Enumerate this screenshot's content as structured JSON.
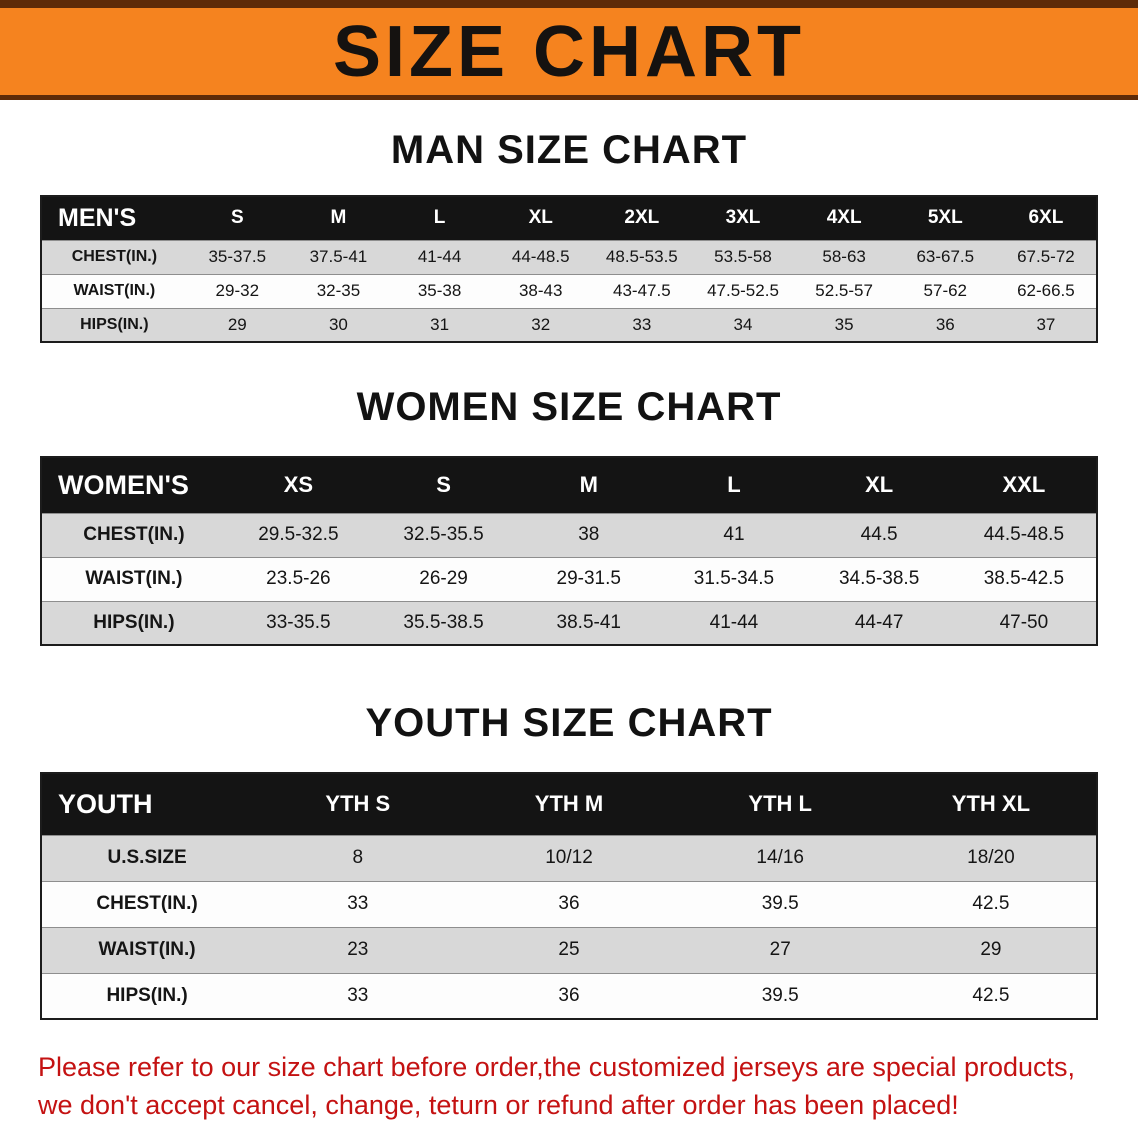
{
  "banner": {
    "title": "SIZE CHART"
  },
  "sections": [
    {
      "heading": "MAN SIZE CHART",
      "table": {
        "header": [
          "MEN'S",
          "S",
          "M",
          "L",
          "XL",
          "2XL",
          "3XL",
          "4XL",
          "5XL",
          "6XL"
        ],
        "rows": [
          [
            "CHEST(IN.)",
            "35-37.5",
            "37.5-41",
            "41-44",
            "44-48.5",
            "48.5-53.5",
            "53.5-58",
            "58-63",
            "63-67.5",
            "67.5-72"
          ],
          [
            "WAIST(IN.)",
            "29-32",
            "32-35",
            "35-38",
            "38-43",
            "43-47.5",
            "47.5-52.5",
            "52.5-57",
            "57-62",
            "62-66.5"
          ],
          [
            "HIPS(IN.)",
            "29",
            "30",
            "31",
            "32",
            "33",
            "34",
            "35",
            "36",
            "37"
          ]
        ]
      }
    },
    {
      "heading": "WOMEN SIZE CHART",
      "table": {
        "header": [
          "WOMEN'S",
          "XS",
          "S",
          "M",
          "L",
          "XL",
          "XXL"
        ],
        "rows": [
          [
            "CHEST(IN.)",
            "29.5-32.5",
            "32.5-35.5",
            "38",
            "41",
            "44.5",
            "44.5-48.5"
          ],
          [
            "WAIST(IN.)",
            "23.5-26",
            "26-29",
            "29-31.5",
            "31.5-34.5",
            "34.5-38.5",
            "38.5-42.5"
          ],
          [
            "HIPS(IN.)",
            "33-35.5",
            "35.5-38.5",
            "38.5-41",
            "41-44",
            "44-47",
            "47-50"
          ]
        ]
      }
    },
    {
      "heading": "YOUTH SIZE CHART",
      "table": {
        "header": [
          "YOUTH",
          "YTH S",
          "YTH M",
          "YTH L",
          "YTH XL"
        ],
        "rows": [
          [
            "U.S.SIZE",
            "8",
            "10/12",
            "14/16",
            "18/20"
          ],
          [
            "CHEST(IN.)",
            "33",
            "36",
            "39.5",
            "42.5"
          ],
          [
            "WAIST(IN.)",
            "23",
            "25",
            "27",
            "29"
          ],
          [
            "HIPS(IN.)",
            "33",
            "36",
            "39.5",
            "42.5"
          ]
        ]
      }
    }
  ],
  "footer": {
    "line1": "Please refer to our size chart before order,the customized jerseys are special products,",
    "line2": "we don't accept cancel, change, teturn or refund after order has been placed!"
  },
  "colors": {
    "banner_bg": "#F5831F",
    "banner_border": "#5E2B08",
    "table_header_bg": "#141414",
    "row_alt": "#D8D8D8",
    "notice_red": "#C41212"
  }
}
